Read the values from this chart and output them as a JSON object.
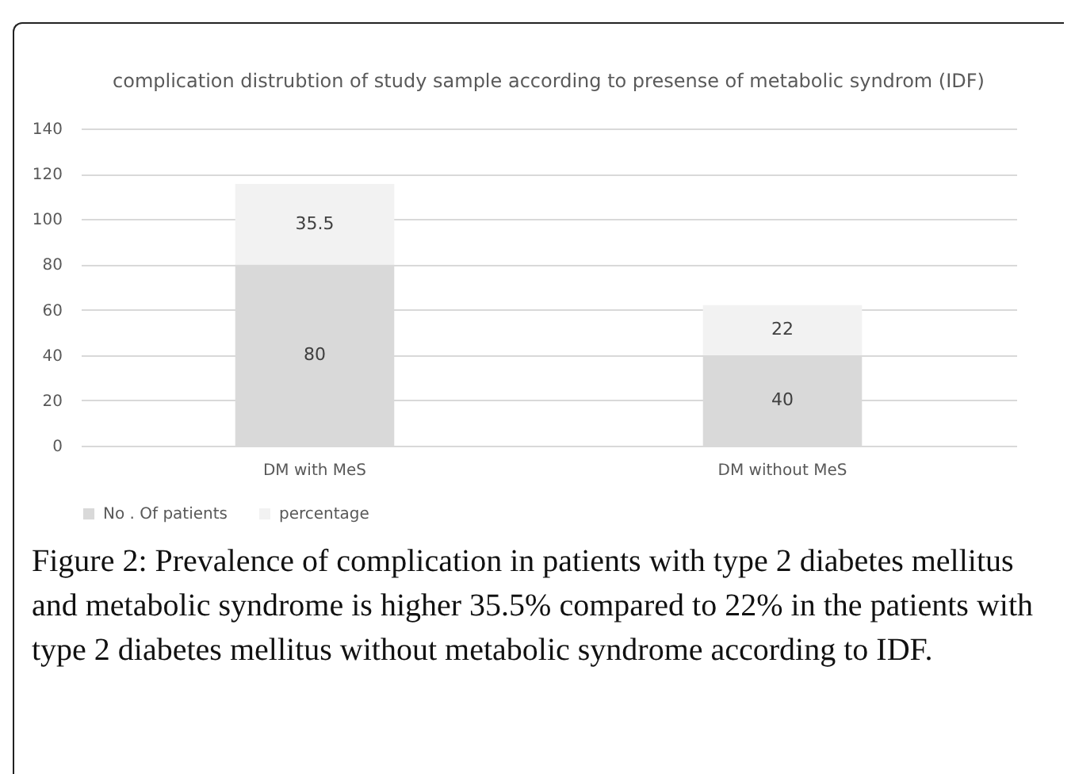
{
  "chart_data": {
    "type": "bar",
    "title": "complication distrubtion of study sample according to presense of metabolic syndrom (IDF)",
    "categories": [
      "DM with MeS",
      "DM without MeS"
    ],
    "series": [
      {
        "name": "No . Of patients",
        "color": "#d9d9d9",
        "values": [
          80,
          40
        ]
      },
      {
        "name": "percentage",
        "color": "#f2f2f2",
        "values": [
          35.5,
          22
        ]
      }
    ],
    "stacked": true,
    "data_labels": true,
    "ylim": [
      0,
      140
    ],
    "yticks": [
      0,
      20,
      40,
      60,
      80,
      100,
      120,
      140
    ],
    "grid": "y",
    "legend": "bottom",
    "annotations": [
      "Figure 2: Prevalence of complication in patients with type 2 diabetes mellitus and metabolic syndrome is higher 35.5% compared to 22% in the patients with type 2 diabetes mellitus without metabolic syndrome according to IDF."
    ]
  }
}
